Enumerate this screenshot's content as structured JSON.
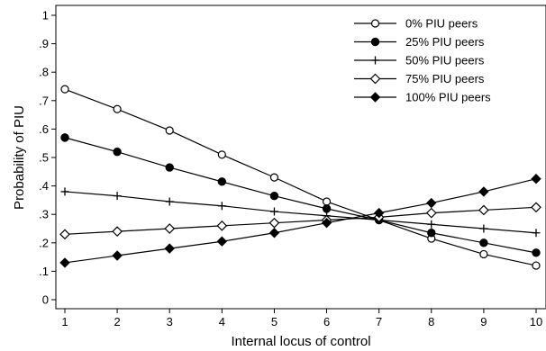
{
  "chart_data": {
    "type": "line",
    "title": "",
    "xlabel": "Internal locus of control",
    "ylabel": "Probability of PIU",
    "x": [
      1,
      2,
      3,
      4,
      5,
      6,
      7,
      8,
      9,
      10
    ],
    "xlim": [
      1,
      10
    ],
    "ylim": [
      0,
      1
    ],
    "xticks": [
      "1",
      "2",
      "3",
      "4",
      "5",
      "6",
      "7",
      "8",
      "9",
      "10"
    ],
    "yticks": [
      {
        "value": 0,
        "label": "0"
      },
      {
        "value": 0.1,
        "label": ".1"
      },
      {
        "value": 0.2,
        "label": ".2"
      },
      {
        "value": 0.3,
        "label": ".3"
      },
      {
        "value": 0.4,
        "label": ".4"
      },
      {
        "value": 0.5,
        "label": ".5"
      },
      {
        "value": 0.6,
        "label": ".6"
      },
      {
        "value": 0.7,
        "label": ".7"
      },
      {
        "value": 0.8,
        "label": ".8"
      },
      {
        "value": 0.9,
        "label": ".9"
      },
      {
        "value": 1,
        "label": "1"
      }
    ],
    "grid": false,
    "legend": "top-right",
    "series": [
      {
        "name": "0% PIU peers",
        "marker": "open-circle",
        "values": [
          0.74,
          0.67,
          0.595,
          0.51,
          0.43,
          0.345,
          0.28,
          0.215,
          0.16,
          0.12
        ]
      },
      {
        "name": "25% PIU peers",
        "marker": "filled-circle",
        "values": [
          0.57,
          0.52,
          0.465,
          0.415,
          0.365,
          0.32,
          0.28,
          0.235,
          0.2,
          0.165
        ]
      },
      {
        "name": "50% PIU peers",
        "marker": "plus",
        "values": [
          0.38,
          0.365,
          0.345,
          0.33,
          0.31,
          0.295,
          0.28,
          0.265,
          0.25,
          0.235
        ]
      },
      {
        "name": "75% PIU peers",
        "marker": "open-diamond",
        "values": [
          0.23,
          0.24,
          0.25,
          0.26,
          0.27,
          0.28,
          0.29,
          0.305,
          0.315,
          0.325
        ]
      },
      {
        "name": "100% PIU peers",
        "marker": "filled-diamond",
        "values": [
          0.13,
          0.155,
          0.18,
          0.205,
          0.235,
          0.27,
          0.305,
          0.34,
          0.38,
          0.425
        ]
      }
    ]
  }
}
